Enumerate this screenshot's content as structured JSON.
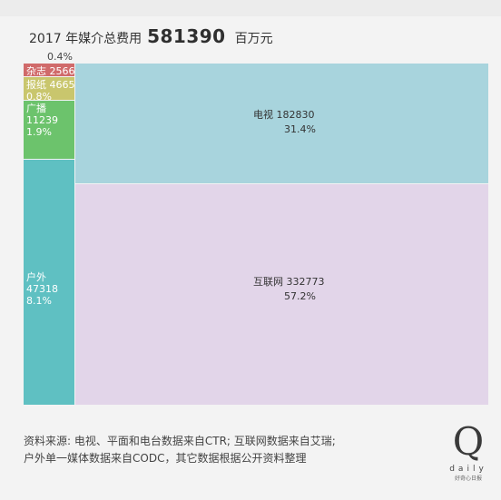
{
  "header": {
    "prefix": "2017 年媒介总费用",
    "total": "581390",
    "unit": "百万元"
  },
  "chart_data": {
    "type": "treemap",
    "total": 581390,
    "outside_label": "0.4%",
    "segments": [
      {
        "name": "杂志",
        "value": 2566,
        "pct": "0.4%",
        "color": "#d06a6a",
        "lines": [
          "杂志 2566"
        ]
      },
      {
        "name": "报纸",
        "value": 4665,
        "pct": "0.8%",
        "color": "#c9c66d",
        "lines": [
          "报纸 4665",
          "0.8%"
        ]
      },
      {
        "name": "广播",
        "value": 11239,
        "pct": "1.9%",
        "color": "#6cc36c",
        "lines": [
          "广播",
          "11239",
          "1.9%"
        ]
      },
      {
        "name": "户外",
        "value": 47318,
        "pct": "8.1%",
        "color": "#5fc0c2",
        "lines": [
          "户外",
          "47318",
          "8.1%"
        ]
      },
      {
        "name": "电视",
        "value": 182830,
        "pct": "31.4%",
        "color": "#a8d4dd",
        "lines": [
          "电视  182830",
          "31.4%"
        ]
      },
      {
        "name": "互联网",
        "value": 332773,
        "pct": "57.2%",
        "color": "#e2d5e9",
        "lines": [
          "互联网  332773",
          "57.2%"
        ]
      }
    ]
  },
  "footer": {
    "line1": "资料来源: 电视、平面和电台数据来自CTR; 互联网数据来自艾瑞;",
    "line2": "户外单一媒体数据来自CODC，其它数据根据公开资料整理"
  },
  "logo": {
    "letter": "Q",
    "word": "daily",
    "sub": "好奇心日报"
  }
}
